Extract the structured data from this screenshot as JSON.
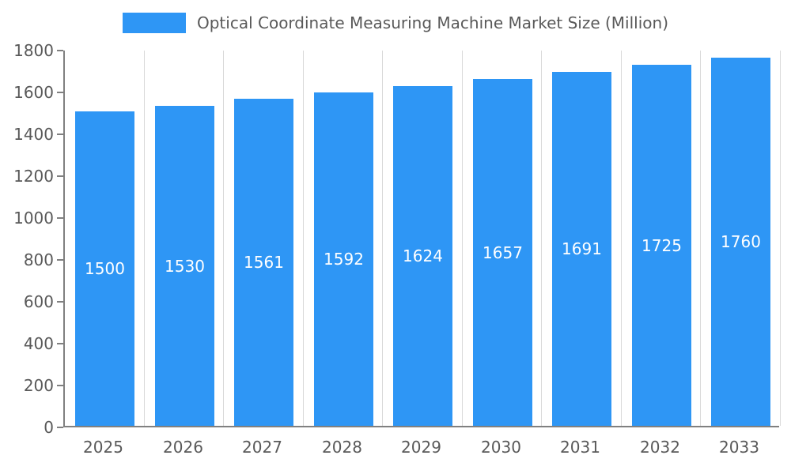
{
  "chart_data": {
    "type": "bar",
    "title": "Optical Coordinate Measuring Machine Market Size (Million)",
    "categories": [
      "2025",
      "2026",
      "2027",
      "2028",
      "2029",
      "2030",
      "2031",
      "2032",
      "2033"
    ],
    "values": [
      1500,
      1530,
      1561,
      1592,
      1624,
      1657,
      1691,
      1725,
      1760
    ],
    "xlabel": "",
    "ylabel": "",
    "ylim": [
      0,
      1800
    ],
    "ytick_step": 200,
    "grid": "vertical",
    "legend_position": "top",
    "bar_color": "#2e96f5",
    "bar_label_color": "#ffffff",
    "axis_text_color": "#595959",
    "axis_line_color": "#808080",
    "gridline_color": "#d9d9d9"
  }
}
